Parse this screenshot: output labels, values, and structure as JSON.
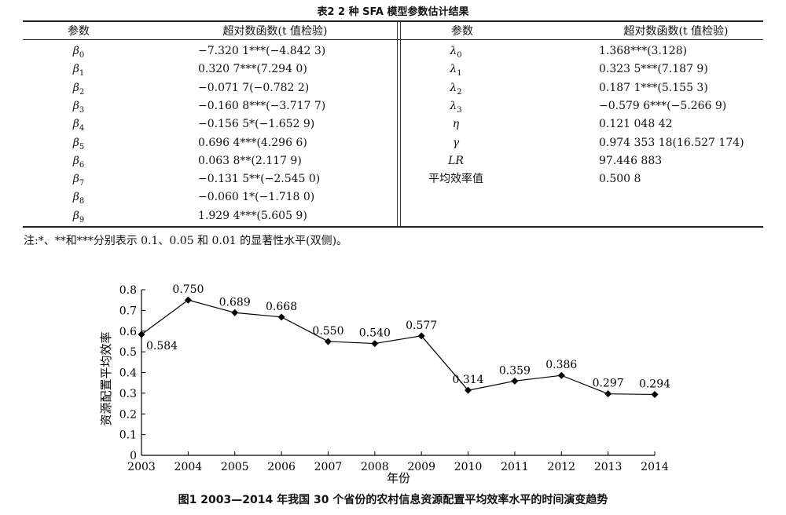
{
  "table": {
    "caption": "表2   2 种 SFA 模型参数估计结果",
    "headers": {
      "left_param": "参数",
      "left_value": "超对数函数(t 值检验)",
      "right_param": "参数",
      "right_value": "超对数函数(t 值检验)"
    },
    "left_rows": [
      {
        "sym": "β",
        "sub": "0",
        "value": "−7.320 1***(−4.842 3)"
      },
      {
        "sym": "β",
        "sub": "1",
        "value": "0.320 7***(7.294 0)"
      },
      {
        "sym": "β",
        "sub": "2",
        "value": "−0.071 7(−0.782 2)"
      },
      {
        "sym": "β",
        "sub": "3",
        "value": "−0.160 8***(−3.717 7)"
      },
      {
        "sym": "β",
        "sub": "4",
        "value": "−0.156 5*(−1.652 9)"
      },
      {
        "sym": "β",
        "sub": "5",
        "value": "0.696 4***(4.296 6)"
      },
      {
        "sym": "β",
        "sub": "6",
        "value": "0.063 8**(2.117 9)"
      },
      {
        "sym": "β",
        "sub": "7",
        "value": "−0.131 5**(−2.545 0)"
      },
      {
        "sym": "β",
        "sub": "8",
        "value": "−0.060 1*(−1.718 0)"
      },
      {
        "sym": "β",
        "sub": "9",
        "value": "1.929 4***(5.605 9)"
      }
    ],
    "right_rows": [
      {
        "sym": "λ",
        "sub": "0",
        "value": "1.368***(3.128)"
      },
      {
        "sym": "λ",
        "sub": "1",
        "value": "0.323 5***(7.187 9)"
      },
      {
        "sym": "λ",
        "sub": "2",
        "value": "0.187 1***(5.155 3)"
      },
      {
        "sym": "λ",
        "sub": "3",
        "value": "−0.579 6***(−5.266 9)"
      },
      {
        "sym": "η",
        "sub": "",
        "value": "0.121 048 42"
      },
      {
        "sym": "γ",
        "sub": "",
        "value": "0.974 353 18(16.527 174)"
      },
      {
        "sym": "LR",
        "sub": "",
        "value": "97.446 883"
      },
      {
        "sym": "平均效率值",
        "sub": "",
        "value": "0.500 8"
      }
    ],
    "note": "注:*、**和***分别表示 0.1、0.05 和 0.01 的显著性水平(双侧)。"
  },
  "figure_caption": "图1   2003—2014 年我国 30 个省份的农村信息资源配置平均效率水平的时间演变趋势",
  "chart_data": {
    "type": "line",
    "x": [
      "2003",
      "2004",
      "2005",
      "2006",
      "2007",
      "2008",
      "2009",
      "2010",
      "2011",
      "2012",
      "2013",
      "2014"
    ],
    "values": [
      0.584,
      0.75,
      0.689,
      0.668,
      0.55,
      0.54,
      0.577,
      0.314,
      0.359,
      0.386,
      0.297,
      0.294
    ],
    "data_labels": [
      "0.584",
      "0.750",
      "0.689",
      "0.668",
      "0.550",
      "0.540",
      "0.577",
      "0.314",
      "0.359",
      "0.386",
      "0.297",
      "0.294"
    ],
    "xlabel": "年份",
    "ylabel": "资源配置平均效率",
    "ylim": [
      0,
      0.8
    ],
    "yticks": [
      "0",
      "0.1",
      "0.2",
      "0.3",
      "0.4",
      "0.5",
      "0.6",
      "0.7",
      "0.8"
    ],
    "marker": "diamond",
    "grid": false,
    "line_color": "#000000"
  }
}
